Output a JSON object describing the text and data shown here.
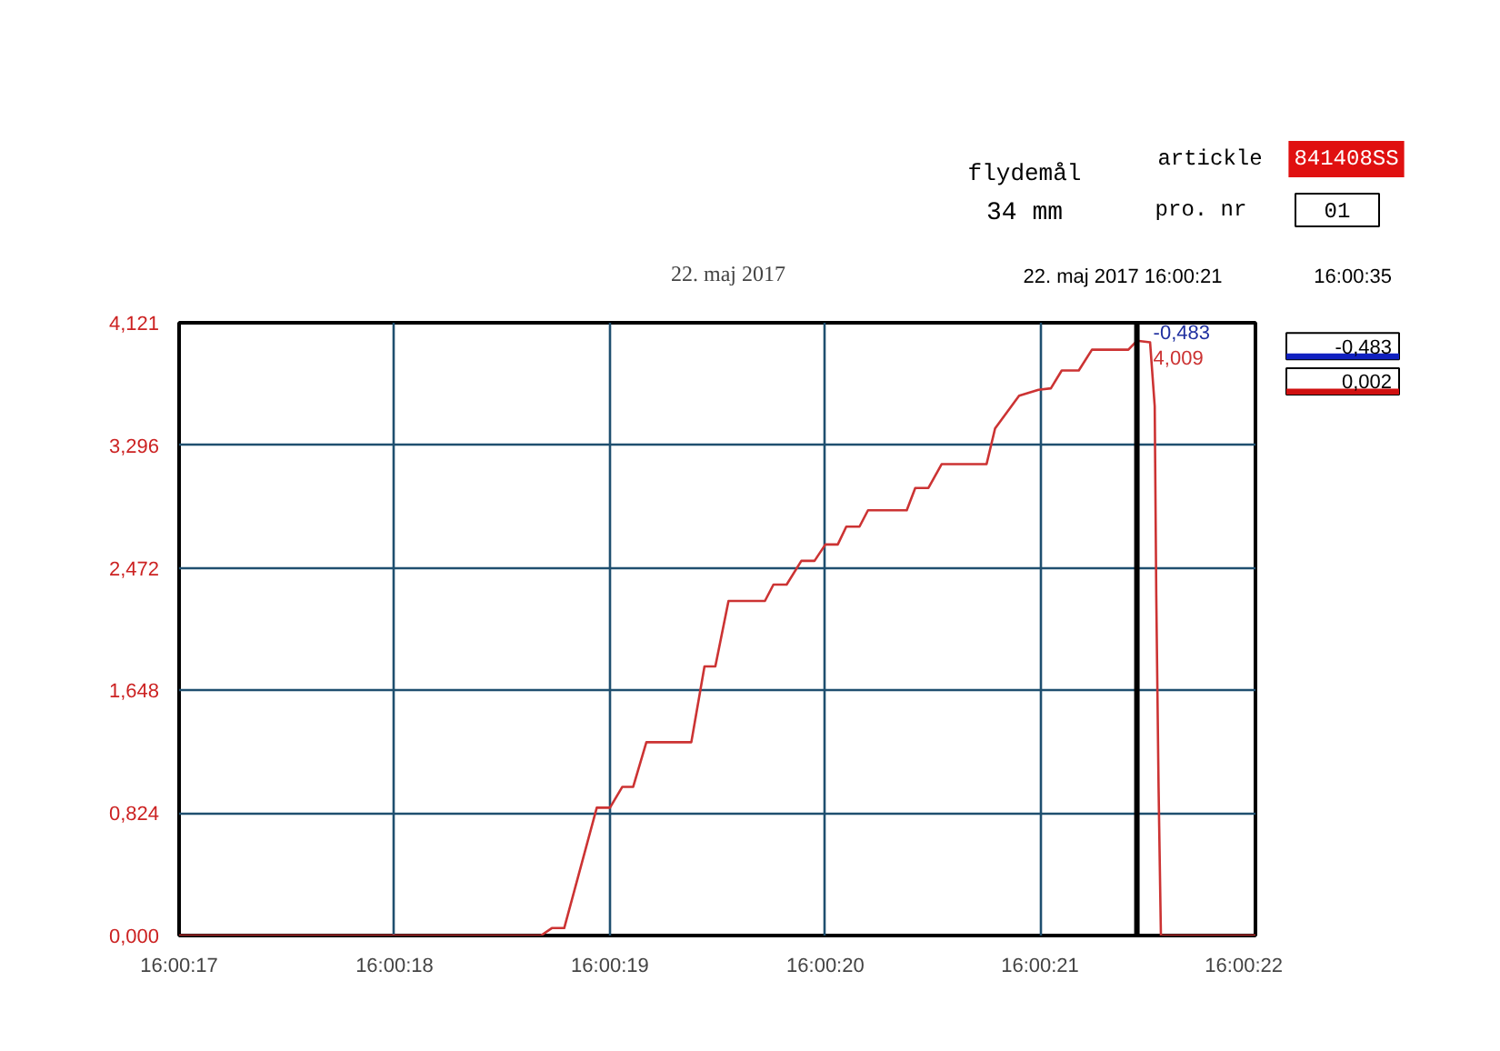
{
  "chart_data": {
    "type": "line",
    "title": "22. maj 2017",
    "x": [
      16.004722,
      16.005189,
      16.005203,
      16.005219,
      16.005261,
      16.005278,
      16.005294,
      16.005308,
      16.005325,
      16.005383,
      16.0054,
      16.005414,
      16.005431,
      16.005478,
      16.005489,
      16.005506,
      16.005525,
      16.005542,
      16.005556,
      16.005572,
      16.005583,
      16.0056,
      16.005611,
      16.005661,
      16.005672,
      16.005689,
      16.005706,
      16.005764,
      16.005775,
      16.005806,
      16.005831,
      16.005847,
      16.005861,
      16.005883,
      16.0059,
      16.005947,
      16.005958,
      16.005975,
      16.005981,
      16.005983,
      16.005986,
      16.005989,
      16.006111
    ],
    "series": [
      {
        "color": "#cc3333",
        "values": [
          0,
          0,
          0.05,
          0.05,
          0.86,
          0.86,
          1.0,
          1.0,
          1.3,
          1.3,
          1.81,
          1.81,
          2.25,
          2.25,
          2.36,
          2.36,
          2.52,
          2.52,
          2.63,
          2.63,
          2.75,
          2.75,
          2.86,
          2.86,
          3.01,
          3.01,
          3.17,
          3.17,
          3.41,
          3.63,
          3.67,
          3.68,
          3.8,
          3.8,
          3.94,
          3.94,
          4.0,
          3.99,
          3.56,
          2.29,
          0.99,
          0,
          0
        ]
      }
    ],
    "xlim": [
      16.004722,
      16.006111
    ],
    "xticks": [
      {
        "value": 16.004722,
        "label": "16:00:17"
      },
      {
        "value": 16.005,
        "label": "16:00:18"
      },
      {
        "value": 16.005278,
        "label": "16:00:19"
      },
      {
        "value": 16.005556,
        "label": "16:00:20"
      },
      {
        "value": 16.005833,
        "label": "16:00:21"
      },
      {
        "value": 16.006111,
        "label": "16:00:22"
      }
    ],
    "ylim": [
      0,
      4.121
    ],
    "yticks": [
      {
        "value": 0,
        "label": "0,000"
      },
      {
        "value": 0.824,
        "label": "0,824"
      },
      {
        "value": 1.648,
        "label": "1,648"
      },
      {
        "value": 2.472,
        "label": "2,472"
      },
      {
        "value": 3.296,
        "label": "3,296"
      },
      {
        "value": 4.121,
        "label": "4,121"
      }
    ],
    "grid": true,
    "marker": "none",
    "line_style": "solid",
    "ref_lines": [
      {
        "axis": "x",
        "value": 16.005958,
        "label": "22. maj 2017  16:00:21",
        "color": "#000000"
      }
    ],
    "annotations": [
      "flydemål",
      "34 mm",
      "artickle",
      "841408SS",
      "pro. nr",
      "01",
      "16:00:35",
      "-0,483",
      "0,002",
      "-0,483",
      {
        "text": "4,009",
        "x": 16.005958,
        "y": 4.009
      }
    ]
  }
}
